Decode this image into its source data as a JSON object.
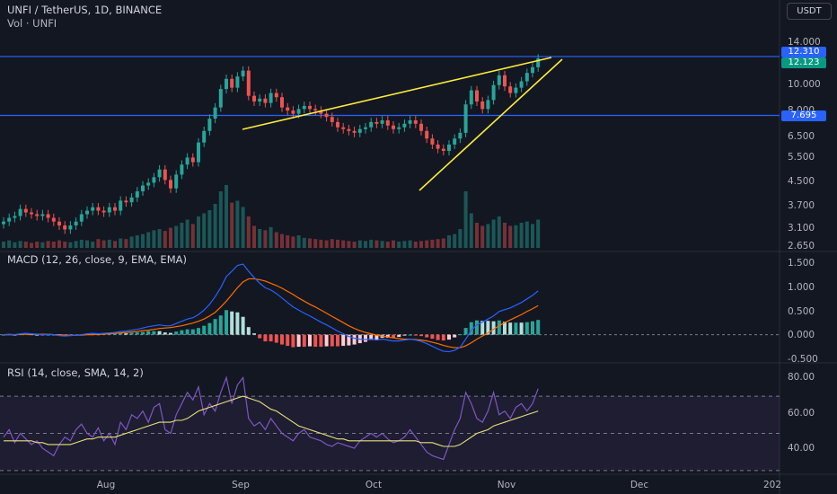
{
  "header": {
    "symbol_line": "UNFI / TetherUS, 1D, BINANCE",
    "volume_line": "Vol · UNFI",
    "currency_button": "USDT"
  },
  "price_tags": {
    "resistance": {
      "label": "12.310",
      "color": "#2962ff"
    },
    "last": {
      "label": "12.123",
      "color": "#089981"
    },
    "support": {
      "label": "7.695",
      "color": "#2962ff"
    }
  },
  "macd": {
    "title": "MACD (12, 26, close, 9, EMA, EMA)"
  },
  "rsi": {
    "title": "RSI (14, close, SMA, 14, 2)"
  },
  "colors": {
    "bg": "#131722",
    "up": "#26a69a",
    "down": "#ef5350",
    "hline": "#2962ff",
    "trend": "#ffeb3b",
    "macd": "#2962ff",
    "signal": "#ff6d00",
    "rsi": "#7e57c2",
    "rsi_ma": "#e9e17b"
  },
  "chart_data": [
    {
      "type": "candlestick",
      "title": "UNFI / TetherUS, 1D, BINANCE",
      "x_ticks": [
        "Aug",
        "Sep",
        "Oct",
        "Nov",
        "Dec",
        "202"
      ],
      "y_ticks": [
        "14.000",
        "12.310",
        "12.123",
        "10.000",
        "8.000",
        "7.695",
        "6.500",
        "5.500",
        "4.500",
        "3.700",
        "3.100",
        "2.650"
      ],
      "y_scale": "log",
      "ylim": [
        2.6,
        14.3
      ],
      "horizontal_lines": [
        12.31,
        7.695
      ],
      "series": [
        {
          "name": "price",
          "close_path": [
            3.3,
            3.4,
            3.45,
            3.65,
            3.55,
            3.5,
            3.45,
            3.5,
            3.4,
            3.3,
            3.2,
            3.1,
            3.2,
            3.3,
            3.5,
            3.6,
            3.7,
            3.6,
            3.55,
            3.7,
            3.6,
            3.9,
            3.85,
            4.0,
            4.2,
            4.4,
            4.5,
            4.7,
            5.0,
            4.6,
            4.3,
            4.8,
            5.2,
            5.5,
            5.3,
            6.2,
            6.8,
            7.5,
            8.2,
            9.5,
            10.3,
            9.6,
            10.5,
            11.0,
            9.0,
            8.6,
            8.8,
            8.5,
            9.2,
            8.9,
            8.2,
            8.0,
            7.8,
            8.1,
            8.3,
            8.1,
            8.0,
            7.8,
            7.6,
            7.3,
            7.0,
            6.9,
            6.8,
            6.7,
            6.9,
            7.0,
            7.3,
            7.2,
            7.4,
            7.1,
            6.9,
            7.0,
            7.2,
            7.4,
            7.2,
            6.8,
            6.4,
            6.1,
            5.9,
            5.8,
            6.1,
            6.4,
            6.7,
            8.4,
            9.4,
            8.6,
            8.1,
            8.7,
            9.8,
            10.6,
            9.7,
            9.2,
            9.6,
            10.1,
            10.8,
            11.3,
            12.123
          ]
        },
        {
          "name": "Vol · UNFI",
          "relative_volume": [
            0.1,
            0.12,
            0.09,
            0.11,
            0.1,
            0.08,
            0.1,
            0.09,
            0.11,
            0.1,
            0.12,
            0.1,
            0.09,
            0.11,
            0.13,
            0.12,
            0.1,
            0.14,
            0.12,
            0.13,
            0.11,
            0.15,
            0.14,
            0.18,
            0.2,
            0.22,
            0.25,
            0.28,
            0.3,
            0.27,
            0.32,
            0.35,
            0.4,
            0.45,
            0.38,
            0.5,
            0.55,
            0.6,
            0.7,
            0.9,
            1.0,
            0.72,
            0.75,
            0.65,
            0.5,
            0.35,
            0.3,
            0.28,
            0.33,
            0.25,
            0.22,
            0.2,
            0.18,
            0.2,
            0.16,
            0.15,
            0.14,
            0.13,
            0.12,
            0.14,
            0.13,
            0.12,
            0.11,
            0.1,
            0.12,
            0.11,
            0.13,
            0.12,
            0.11,
            0.1,
            0.12,
            0.1,
            0.11,
            0.12,
            0.1,
            0.11,
            0.12,
            0.13,
            0.14,
            0.15,
            0.2,
            0.22,
            0.3,
            0.9,
            0.55,
            0.4,
            0.35,
            0.38,
            0.45,
            0.5,
            0.4,
            0.35,
            0.36,
            0.4,
            0.42,
            0.38,
            0.45
          ]
        }
      ]
    },
    {
      "type": "line",
      "title": "MACD (12, 26, close, 9, EMA, EMA)",
      "y_ticks": [
        "1.500",
        "1.000",
        "0.500",
        "0.000",
        "-0.500"
      ],
      "ylim": [
        -0.55,
        1.6
      ],
      "series": [
        {
          "name": "MACD",
          "values": [
            0.0,
            0.01,
            0.0,
            0.02,
            0.03,
            0.02,
            0.01,
            0.0,
            0.01,
            0.0,
            -0.02,
            -0.03,
            -0.02,
            -0.01,
            0.0,
            0.02,
            0.03,
            0.02,
            0.03,
            0.04,
            0.05,
            0.07,
            0.08,
            0.1,
            0.12,
            0.15,
            0.18,
            0.2,
            0.22,
            0.2,
            0.2,
            0.25,
            0.3,
            0.35,
            0.38,
            0.45,
            0.55,
            0.68,
            0.85,
            1.05,
            1.3,
            1.42,
            1.55,
            1.58,
            1.42,
            1.28,
            1.15,
            1.05,
            1.0,
            0.92,
            0.82,
            0.72,
            0.62,
            0.55,
            0.48,
            0.42,
            0.35,
            0.28,
            0.22,
            0.15,
            0.08,
            0.02,
            -0.04,
            -0.08,
            -0.1,
            -0.11,
            -0.1,
            -0.12,
            -0.1,
            -0.12,
            -0.14,
            -0.14,
            -0.12,
            -0.1,
            -0.12,
            -0.15,
            -0.2,
            -0.26,
            -0.32,
            -0.37,
            -0.38,
            -0.35,
            -0.28,
            -0.1,
            0.1,
            0.22,
            0.28,
            0.35,
            0.42,
            0.52,
            0.56,
            0.6,
            0.66,
            0.72,
            0.8,
            0.88,
            0.98
          ]
        },
        {
          "name": "Signal",
          "values": [
            0.0,
            0.0,
            0.0,
            0.01,
            0.01,
            0.01,
            0.01,
            0.01,
            0.01,
            0.0,
            0.0,
            -0.01,
            -0.01,
            -0.01,
            -0.01,
            0.0,
            0.0,
            0.01,
            0.01,
            0.02,
            0.03,
            0.04,
            0.05,
            0.06,
            0.07,
            0.09,
            0.1,
            0.12,
            0.14,
            0.15,
            0.16,
            0.18,
            0.2,
            0.23,
            0.26,
            0.3,
            0.35,
            0.42,
            0.5,
            0.62,
            0.75,
            0.9,
            1.05,
            1.18,
            1.25,
            1.25,
            1.23,
            1.2,
            1.15,
            1.1,
            1.04,
            0.97,
            0.9,
            0.82,
            0.75,
            0.68,
            0.62,
            0.55,
            0.48,
            0.41,
            0.34,
            0.27,
            0.2,
            0.14,
            0.09,
            0.05,
            0.02,
            -0.01,
            -0.03,
            -0.05,
            -0.07,
            -0.09,
            -0.1,
            -0.1,
            -0.11,
            -0.12,
            -0.14,
            -0.17,
            -0.2,
            -0.24,
            -0.27,
            -0.29,
            -0.29,
            -0.25,
            -0.18,
            -0.1,
            -0.03,
            0.04,
            0.12,
            0.2,
            0.27,
            0.33,
            0.39,
            0.45,
            0.52,
            0.58,
            0.65
          ]
        }
      ]
    },
    {
      "type": "line",
      "title": "RSI (14, close, SMA, 14, 2)",
      "y_ticks": [
        "80.00",
        "60.00",
        "40.00"
      ],
      "ylim": [
        29,
        85
      ],
      "bands": [
        70,
        50,
        30
      ],
      "series": [
        {
          "name": "RSI",
          "values": [
            48,
            52,
            45,
            50,
            47,
            44,
            46,
            42,
            40,
            38,
            44,
            48,
            46,
            52,
            55,
            50,
            48,
            53,
            46,
            50,
            44,
            56,
            52,
            60,
            58,
            62,
            56,
            64,
            66,
            52,
            50,
            60,
            66,
            72,
            68,
            75,
            60,
            66,
            62,
            72,
            80,
            66,
            76,
            80,
            58,
            54,
            56,
            52,
            58,
            54,
            50,
            48,
            46,
            50,
            52,
            48,
            47,
            46,
            44,
            43,
            45,
            44,
            43,
            42,
            46,
            48,
            50,
            48,
            50,
            47,
            45,
            46,
            48,
            52,
            48,
            44,
            40,
            38,
            37,
            36,
            44,
            52,
            58,
            72,
            66,
            58,
            56,
            62,
            72,
            60,
            62,
            58,
            64,
            66,
            62,
            66,
            74
          ]
        },
        {
          "name": "RSI-based MA",
          "values": [
            46,
            46,
            46,
            46,
            46,
            46,
            45,
            45,
            44,
            44,
            44,
            44,
            44,
            45,
            46,
            47,
            47,
            48,
            48,
            48,
            48,
            49,
            50,
            51,
            52,
            53,
            54,
            55,
            56,
            56,
            56,
            57,
            57,
            58,
            60,
            62,
            63,
            64,
            65,
            66,
            67,
            68,
            69,
            70,
            69,
            68,
            67,
            65,
            63,
            62,
            60,
            58,
            56,
            54,
            53,
            52,
            51,
            50,
            49,
            48,
            47,
            47,
            46,
            46,
            46,
            46,
            46,
            46,
            46,
            46,
            46,
            46,
            46,
            46,
            46,
            45,
            45,
            45,
            44,
            43,
            43,
            43,
            44,
            46,
            48,
            50,
            51,
            52,
            54,
            55,
            56,
            57,
            58,
            59,
            60,
            61,
            62
          ]
        }
      ]
    }
  ]
}
